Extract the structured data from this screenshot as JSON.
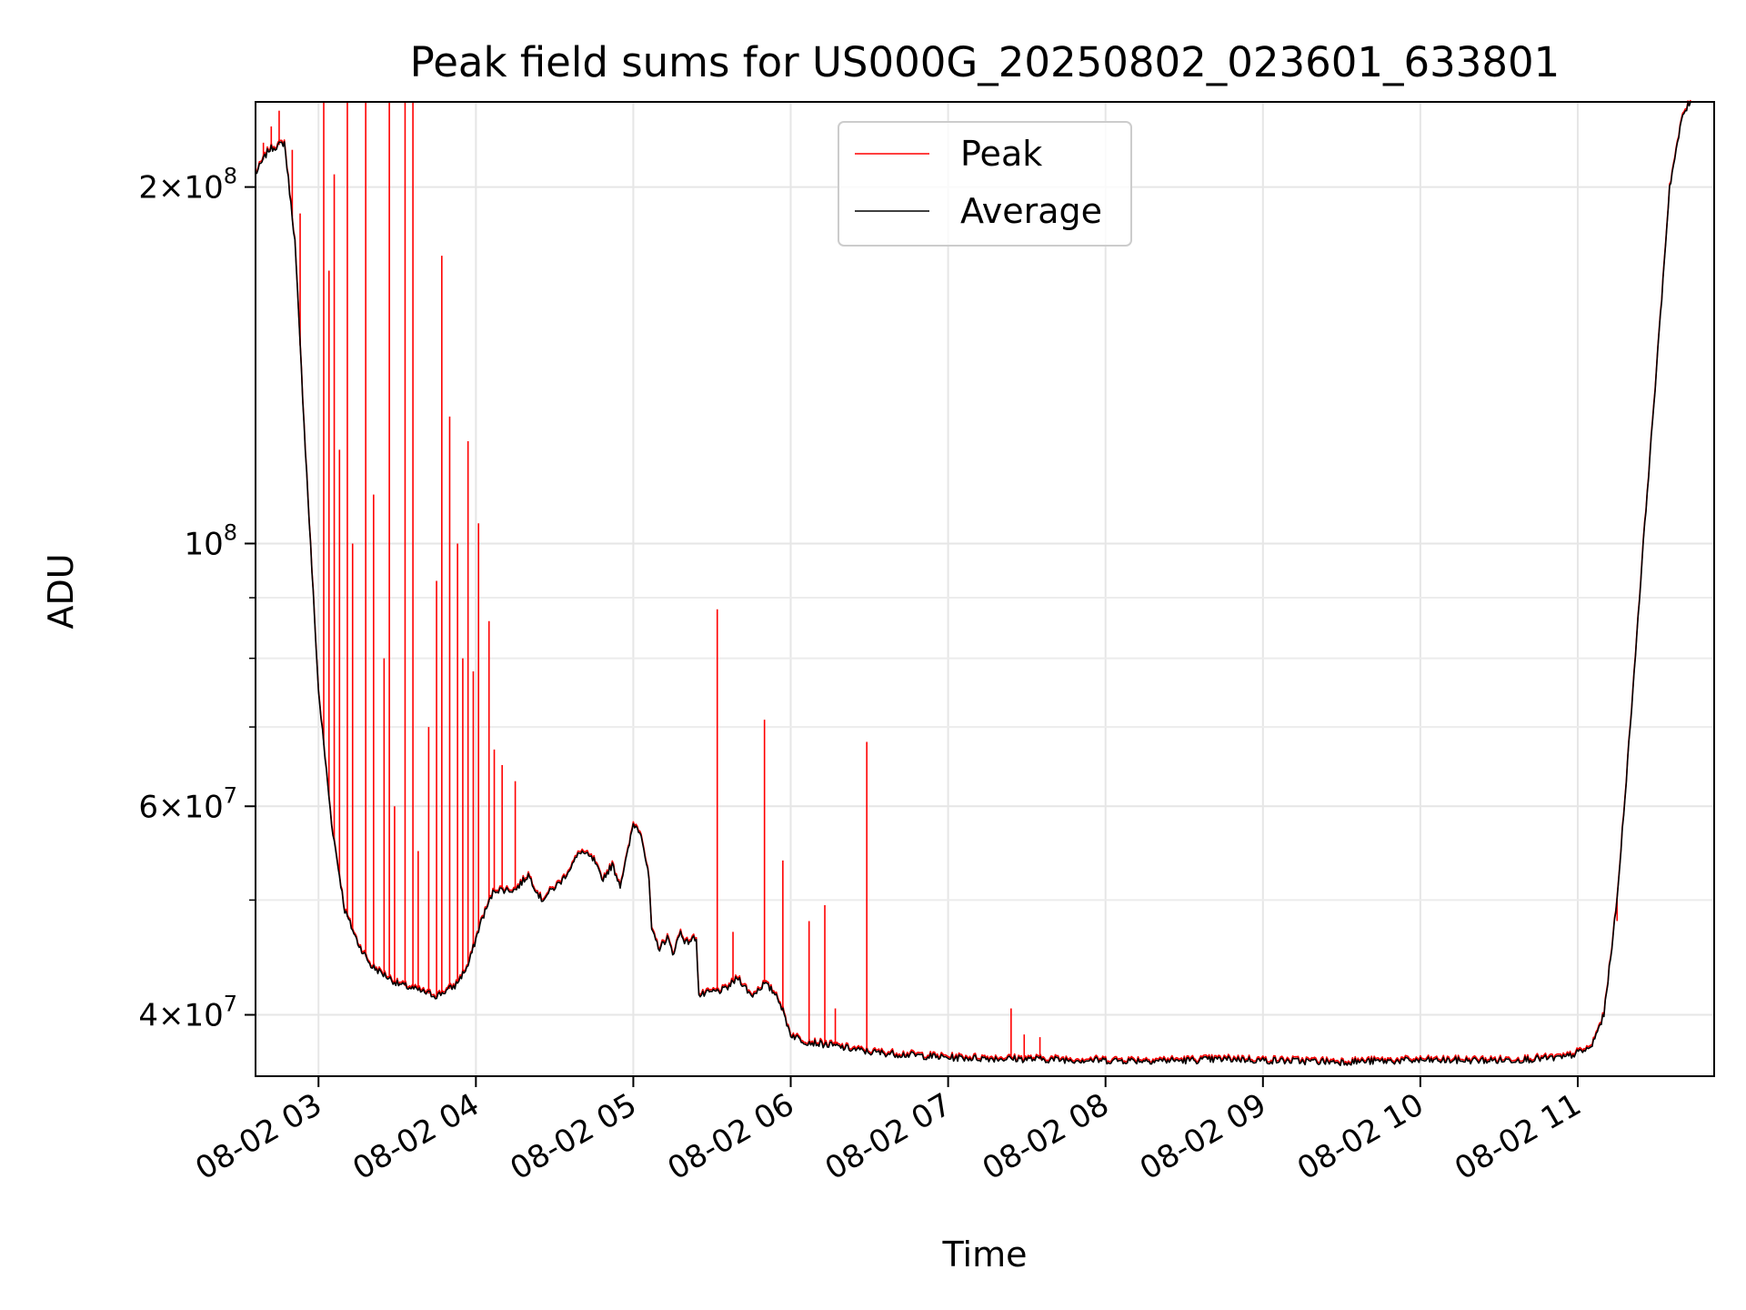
{
  "chart_data": {
    "type": "line",
    "title": "Peak field sums for US000G_20250802_023601_633801",
    "xlabel": "Time",
    "ylabel": "ADU",
    "yscale": "log",
    "ylim": [
      35500000,
      236000000
    ],
    "xlim": [
      "2025-08-02T02:36",
      "2025-08-02T11:52"
    ],
    "grid": true,
    "legend_position": "top-center",
    "x_ticks": [
      {
        "t": "2025-08-02T03:00",
        "label": "08-02 03"
      },
      {
        "t": "2025-08-02T04:00",
        "label": "08-02 04"
      },
      {
        "t": "2025-08-02T05:00",
        "label": "08-02 05"
      },
      {
        "t": "2025-08-02T06:00",
        "label": "08-02 06"
      },
      {
        "t": "2025-08-02T07:00",
        "label": "08-02 07"
      },
      {
        "t": "2025-08-02T08:00",
        "label": "08-02 08"
      },
      {
        "t": "2025-08-02T09:00",
        "label": "08-02 09"
      },
      {
        "t": "2025-08-02T10:00",
        "label": "08-02 10"
      },
      {
        "t": "2025-08-02T11:00",
        "label": "08-02 11"
      }
    ],
    "y_ticks_major": [
      {
        "value": 40000000,
        "base": "4×10",
        "exp": "7"
      },
      {
        "value": 60000000,
        "base": "6×10",
        "exp": "7"
      },
      {
        "value": 100000000,
        "base": "10",
        "exp": "8"
      },
      {
        "value": 200000000,
        "base": "2×10",
        "exp": "8"
      }
    ],
    "y_ticks_minor": [
      50000000,
      70000000,
      80000000,
      90000000
    ],
    "series": [
      {
        "name": "Average",
        "color": "#000000",
        "points": [
          [
            "2025-08-02T02:36",
            205000000
          ],
          [
            "2025-08-02T02:41",
            215000000
          ],
          [
            "2025-08-02T02:47",
            218000000
          ],
          [
            "2025-08-02T02:51",
            180000000
          ],
          [
            "2025-08-02T02:55",
            120000000
          ],
          [
            "2025-08-02T03:00",
            75000000
          ],
          [
            "2025-08-02T03:05",
            58000000
          ],
          [
            "2025-08-02T03:10",
            49000000
          ],
          [
            "2025-08-02T03:15",
            46000000
          ],
          [
            "2025-08-02T03:20",
            44000000
          ],
          [
            "2025-08-02T03:30",
            42500000
          ],
          [
            "2025-08-02T03:40",
            41800000
          ],
          [
            "2025-08-02T03:45",
            41500000
          ],
          [
            "2025-08-02T03:52",
            42300000
          ],
          [
            "2025-08-02T03:57",
            44000000
          ],
          [
            "2025-08-02T04:02",
            48000000
          ],
          [
            "2025-08-02T04:07",
            51000000
          ],
          [
            "2025-08-02T04:15",
            51000000
          ],
          [
            "2025-08-02T04:20",
            52500000
          ],
          [
            "2025-08-02T04:25",
            50000000
          ],
          [
            "2025-08-02T04:33",
            52000000
          ],
          [
            "2025-08-02T04:40",
            55000000
          ],
          [
            "2025-08-02T04:45",
            54000000
          ],
          [
            "2025-08-02T04:48",
            52000000
          ],
          [
            "2025-08-02T04:52",
            53500000
          ],
          [
            "2025-08-02T04:55",
            51500000
          ],
          [
            "2025-08-02T04:58",
            55000000
          ],
          [
            "2025-08-02T05:00",
            58000000
          ],
          [
            "2025-08-02T05:03",
            57000000
          ],
          [
            "2025-08-02T05:06",
            52000000
          ],
          [
            "2025-08-02T05:07",
            47000000
          ],
          [
            "2025-08-02T05:10",
            45500000
          ],
          [
            "2025-08-02T05:13",
            46500000
          ],
          [
            "2025-08-02T05:15",
            45000000
          ],
          [
            "2025-08-02T05:18",
            47000000
          ],
          [
            "2025-08-02T05:20",
            46000000
          ],
          [
            "2025-08-02T05:24",
            46500000
          ],
          [
            "2025-08-02T05:25",
            41500000
          ],
          [
            "2025-08-02T05:30",
            41800000
          ],
          [
            "2025-08-02T05:35",
            42000000
          ],
          [
            "2025-08-02T05:40",
            43000000
          ],
          [
            "2025-08-02T05:45",
            41500000
          ],
          [
            "2025-08-02T05:50",
            42500000
          ],
          [
            "2025-08-02T05:55",
            41500000
          ],
          [
            "2025-08-02T06:00",
            38500000
          ],
          [
            "2025-08-02T06:05",
            38000000
          ],
          [
            "2025-08-02T06:15",
            37700000
          ],
          [
            "2025-08-02T06:30",
            37200000
          ],
          [
            "2025-08-02T06:45",
            37000000
          ],
          [
            "2025-08-02T07:00",
            36800000
          ],
          [
            "2025-08-02T07:30",
            36700000
          ],
          [
            "2025-08-02T08:00",
            36600000
          ],
          [
            "2025-08-02T08:30",
            36600000
          ],
          [
            "2025-08-02T08:50",
            36700000
          ],
          [
            "2025-08-02T09:00",
            36600000
          ],
          [
            "2025-08-02T09:30",
            36500000
          ],
          [
            "2025-08-02T10:00",
            36600000
          ],
          [
            "2025-08-02T10:30",
            36600000
          ],
          [
            "2025-08-02T10:55",
            36800000
          ],
          [
            "2025-08-02T11:05",
            37500000
          ],
          [
            "2025-08-02T11:10",
            40000000
          ],
          [
            "2025-08-02T11:15",
            50000000
          ],
          [
            "2025-08-02T11:20",
            70000000
          ],
          [
            "2025-08-02T11:25",
            100000000
          ],
          [
            "2025-08-02T11:31",
            150000000
          ],
          [
            "2025-08-02T11:35",
            200000000
          ],
          [
            "2025-08-02T11:40",
            230000000
          ],
          [
            "2025-08-02T11:43",
            236000000
          ]
        ]
      },
      {
        "name": "Peak",
        "color": "#ff0000",
        "spikes": [
          [
            "2025-08-02T02:39",
            218000000
          ],
          [
            "2025-08-02T02:42",
            225000000
          ],
          [
            "2025-08-02T02:45",
            232000000
          ],
          [
            "2025-08-02T02:50",
            215000000
          ],
          [
            "2025-08-02T02:53",
            190000000
          ],
          [
            "2025-08-02T03:02",
            236000000
          ],
          [
            "2025-08-02T03:04",
            170000000
          ],
          [
            "2025-08-02T03:06",
            205000000
          ],
          [
            "2025-08-02T03:08",
            120000000
          ],
          [
            "2025-08-02T03:11",
            236000000
          ],
          [
            "2025-08-02T03:13",
            100000000
          ],
          [
            "2025-08-02T03:18",
            236000000
          ],
          [
            "2025-08-02T03:21",
            110000000
          ],
          [
            "2025-08-02T03:25",
            80000000
          ],
          [
            "2025-08-02T03:27",
            236000000
          ],
          [
            "2025-08-02T03:29",
            60000000
          ],
          [
            "2025-08-02T03:33",
            236000000
          ],
          [
            "2025-08-02T03:36",
            236000000
          ],
          [
            "2025-08-02T03:38",
            55000000
          ],
          [
            "2025-08-02T03:42",
            70000000
          ],
          [
            "2025-08-02T03:45",
            93000000
          ],
          [
            "2025-08-02T03:47",
            175000000
          ],
          [
            "2025-08-02T03:50",
            128000000
          ],
          [
            "2025-08-02T03:53",
            100000000
          ],
          [
            "2025-08-02T03:55",
            80000000
          ],
          [
            "2025-08-02T03:57",
            122000000
          ],
          [
            "2025-08-02T03:59",
            78000000
          ],
          [
            "2025-08-02T04:01",
            104000000
          ],
          [
            "2025-08-02T04:05",
            86000000
          ],
          [
            "2025-08-02T04:07",
            67000000
          ],
          [
            "2025-08-02T04:10",
            65000000
          ],
          [
            "2025-08-02T04:15",
            63000000
          ],
          [
            "2025-08-02T05:32",
            88000000
          ],
          [
            "2025-08-02T05:38",
            47000000
          ],
          [
            "2025-08-02T05:50",
            71000000
          ],
          [
            "2025-08-02T05:57",
            54000000
          ],
          [
            "2025-08-02T06:07",
            48000000
          ],
          [
            "2025-08-02T06:13",
            49500000
          ],
          [
            "2025-08-02T06:17",
            40500000
          ],
          [
            "2025-08-02T06:29",
            68000000
          ],
          [
            "2025-08-02T07:24",
            40500000
          ],
          [
            "2025-08-02T07:29",
            38500000
          ],
          [
            "2025-08-02T07:35",
            38300000
          ],
          [
            "2025-08-02T11:15",
            48000000
          ]
        ]
      }
    ]
  }
}
